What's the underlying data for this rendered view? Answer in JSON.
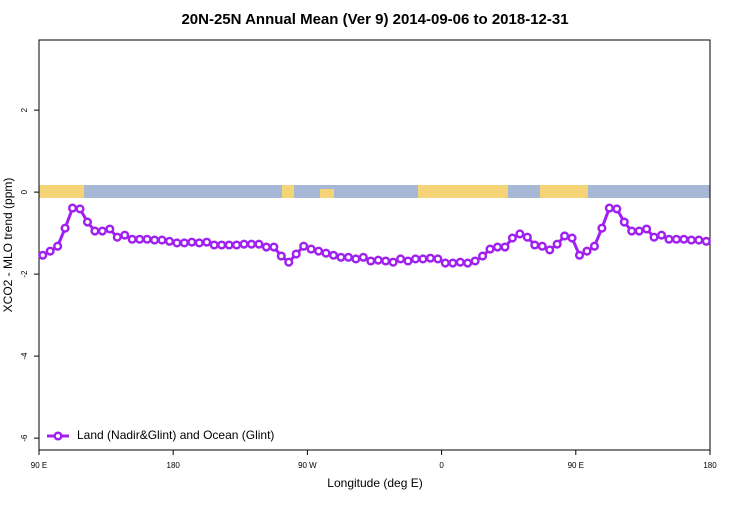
{
  "chart_data": {
    "type": "line",
    "title": "20N-25N Annual Mean (Ver 9)   2014-09-06 to 2018-12-31",
    "x_label": "Longitude (deg E)",
    "y_label": "XCO2 - MLO trend (ppm)",
    "x": [
      92.5,
      97.5,
      102.5,
      107.5,
      112.5,
      117.5,
      122.5,
      127.5,
      132.5,
      137.5,
      142.5,
      147.5,
      152.5,
      157.5,
      162.5,
      167.5,
      172.5,
      177.5,
      182.5,
      187.5,
      192.5,
      197.5,
      202.5,
      207.5,
      212.5,
      217.5,
      222.5,
      227.5,
      232.5,
      237.5,
      242.5,
      247.5,
      252.5,
      257.5,
      262.5,
      267.5,
      272.5,
      277.5,
      282.5,
      287.5,
      292.5,
      297.5,
      302.5,
      307.5,
      312.5,
      317.5,
      322.5,
      327.5,
      332.5,
      337.5,
      342.5,
      347.5,
      352.5,
      357.5,
      362.5,
      367.5,
      372.5,
      377.5,
      382.5,
      387.5,
      392.5,
      397.5,
      402.5,
      407.5,
      412.5,
      417.5,
      422.5,
      427.5,
      432.5,
      437.5,
      442.5,
      447.5,
      452.5,
      457.5,
      462.5,
      467.5,
      472.5,
      477.5,
      482.5,
      487.5,
      492.5,
      497.5,
      502.5,
      507.5,
      512.5,
      517.5,
      522.5,
      527.5,
      532.5,
      537.5
    ],
    "series": [
      {
        "name": "Land (Nadir&Glint) and Ocean (Glint)",
        "color": "#a020f0",
        "values": [
          -1.54,
          -1.44,
          -1.32,
          -0.88,
          -0.39,
          -0.41,
          -0.73,
          -0.95,
          -0.95,
          -0.9,
          -1.1,
          -1.05,
          -1.15,
          -1.15,
          -1.15,
          -1.17,
          -1.17,
          -1.2,
          -1.24,
          -1.24,
          -1.22,
          -1.24,
          -1.22,
          -1.29,
          -1.29,
          -1.29,
          -1.29,
          -1.27,
          -1.27,
          -1.27,
          -1.34,
          -1.34,
          -1.56,
          -1.71,
          -1.51,
          -1.32,
          -1.39,
          -1.44,
          -1.49,
          -1.54,
          -1.59,
          -1.59,
          -1.63,
          -1.59,
          -1.68,
          -1.66,
          -1.68,
          -1.71,
          -1.63,
          -1.68,
          -1.63,
          -1.63,
          -1.61,
          -1.63,
          -1.73,
          -1.73,
          -1.71,
          -1.73,
          -1.68,
          -1.56,
          -1.39,
          -1.34,
          -1.34,
          -1.12,
          -1.02,
          -1.1,
          -1.29,
          -1.32,
          -1.41,
          -1.27,
          -1.07,
          -1.12,
          -1.54,
          -1.44,
          -1.32,
          -0.88,
          -0.39,
          -0.41,
          -0.73,
          -0.95,
          -0.95,
          -0.9,
          -1.1,
          -1.05,
          -1.15,
          -1.15,
          -1.15,
          -1.17,
          -1.17,
          -1.2
        ]
      }
    ],
    "xlim": [
      90,
      540
    ],
    "xticks": [
      {
        "value": 90,
        "label": "90 E"
      },
      180,
      {
        "value": 270,
        "label": "90 W"
      },
      {
        "value": 360,
        "label": "0"
      },
      {
        "value": 450,
        "label": "90 E"
      },
      {
        "value": 540,
        "label": "180"
      }
    ],
    "ylim": [
      -6.29,
      3.71
    ],
    "yticks": [
      -6,
      -4,
      -2,
      0,
      2
    ],
    "legend": "bottom-left"
  }
}
